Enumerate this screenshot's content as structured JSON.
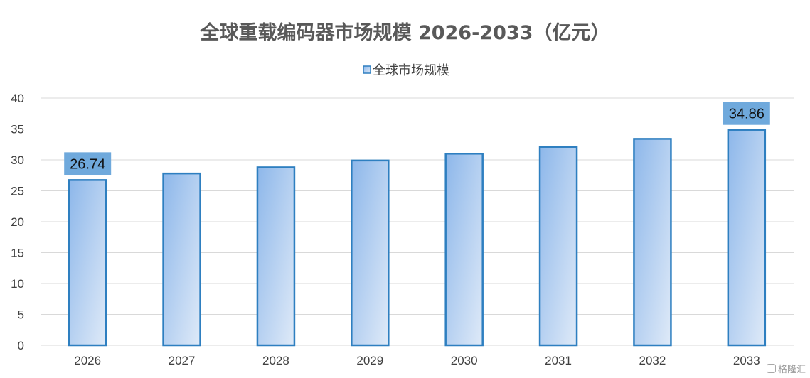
{
  "chart_data": {
    "type": "bar",
    "title": "全球重载编码器市场规模 2026-2033（亿元）",
    "categories": [
      "2026",
      "2027",
      "2028",
      "2029",
      "2030",
      "2031",
      "2032",
      "2033"
    ],
    "series": [
      {
        "name": "全球市场规模",
        "values": [
          26.74,
          27.8,
          28.8,
          29.9,
          31.0,
          32.1,
          33.4,
          34.86
        ]
      }
    ],
    "data_labels": {
      "2026": "26.74",
      "2033": "34.86"
    },
    "ylim": [
      0,
      40
    ],
    "yticks": [
      0,
      5,
      10,
      15,
      20,
      25,
      30,
      35,
      40
    ],
    "grid": true,
    "legend": "top-center",
    "colors": {
      "bar_start": "#8db7ea",
      "bar_end": "#dfeaf8",
      "bar_border": "#2e7fc0",
      "label_bg": "#6fa9dc"
    }
  },
  "watermark": {
    "text": "格隆汇"
  }
}
